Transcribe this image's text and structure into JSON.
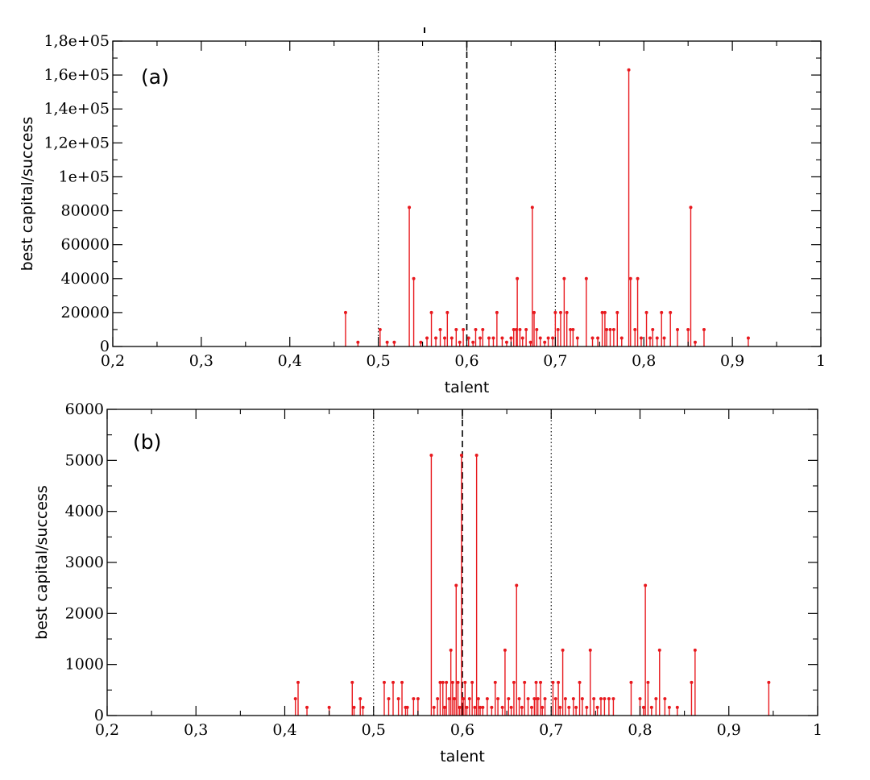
{
  "chart_data": [
    {
      "type": "scatter",
      "panel_label": "(a)",
      "xlabel": "talent",
      "ylabel": "best capital/success",
      "xlim": [
        0.2,
        1.0
      ],
      "ylim": [
        0,
        180000
      ],
      "x_ticks": [
        0.2,
        0.3,
        0.4,
        0.5,
        0.6,
        0.7,
        0.8,
        0.9,
        1.0
      ],
      "x_tick_labels": [
        "0,2",
        "0,3",
        "0,4",
        "0,5",
        "0,6",
        "0,7",
        "0,8",
        "0,9",
        "1"
      ],
      "y_ticks": [
        0,
        20000,
        40000,
        60000,
        80000,
        100000,
        120000,
        140000,
        160000,
        180000
      ],
      "y_tick_labels": [
        "0",
        "20000",
        "40000",
        "60000",
        "80000",
        "1e+05",
        "1,2e+05",
        "1,4e+05",
        "1,6e+05",
        "1,8e+05"
      ],
      "vlines": [
        {
          "x": 0.5,
          "style": "dotted"
        },
        {
          "x": 0.6,
          "style": "dashed"
        },
        {
          "x": 0.7,
          "style": "dotted"
        }
      ],
      "marker_color": "#e8191e",
      "grid": false,
      "points": [
        [
          0.463,
          20000
        ],
        [
          0.477,
          2500
        ],
        [
          0.502,
          10000
        ],
        [
          0.51,
          2500
        ],
        [
          0.518,
          2500
        ],
        [
          0.535,
          82000
        ],
        [
          0.54,
          40000
        ],
        [
          0.548,
          2500
        ],
        [
          0.555,
          5000
        ],
        [
          0.56,
          20000
        ],
        [
          0.565,
          5000
        ],
        [
          0.57,
          10000
        ],
        [
          0.575,
          5000
        ],
        [
          0.578,
          20000
        ],
        [
          0.583,
          5000
        ],
        [
          0.588,
          10000
        ],
        [
          0.592,
          2500
        ],
        [
          0.596,
          10000
        ],
        [
          0.602,
          5000
        ],
        [
          0.607,
          2500
        ],
        [
          0.61,
          10000
        ],
        [
          0.615,
          5000
        ],
        [
          0.618,
          10000
        ],
        [
          0.625,
          5000
        ],
        [
          0.63,
          5000
        ],
        [
          0.634,
          20000
        ],
        [
          0.64,
          5000
        ],
        [
          0.645,
          2500
        ],
        [
          0.65,
          5000
        ],
        [
          0.653,
          10000
        ],
        [
          0.656,
          10000
        ],
        [
          0.657,
          40000
        ],
        [
          0.66,
          10000
        ],
        [
          0.663,
          5000
        ],
        [
          0.667,
          10000
        ],
        [
          0.672,
          2500
        ],
        [
          0.674,
          82000
        ],
        [
          0.676,
          20000
        ],
        [
          0.679,
          10000
        ],
        [
          0.683,
          5000
        ],
        [
          0.688,
          2500
        ],
        [
          0.692,
          5000
        ],
        [
          0.697,
          5000
        ],
        [
          0.7,
          20000
        ],
        [
          0.703,
          10000
        ],
        [
          0.706,
          20000
        ],
        [
          0.71,
          40000
        ],
        [
          0.713,
          20000
        ],
        [
          0.717,
          10000
        ],
        [
          0.72,
          10000
        ],
        [
          0.725,
          5000
        ],
        [
          0.735,
          40000
        ],
        [
          0.742,
          5000
        ],
        [
          0.748,
          5000
        ],
        [
          0.753,
          20000
        ],
        [
          0.756,
          20000
        ],
        [
          0.758,
          10000
        ],
        [
          0.762,
          10000
        ],
        [
          0.766,
          10000
        ],
        [
          0.77,
          20000
        ],
        [
          0.775,
          5000
        ],
        [
          0.783,
          163000
        ],
        [
          0.785,
          40000
        ],
        [
          0.79,
          10000
        ],
        [
          0.793,
          40000
        ],
        [
          0.797,
          5000
        ],
        [
          0.803,
          20000
        ],
        [
          0.807,
          5000
        ],
        [
          0.81,
          10000
        ],
        [
          0.815,
          5000
        ],
        [
          0.82,
          20000
        ],
        [
          0.823,
          5000
        ],
        [
          0.83,
          20000
        ],
        [
          0.838,
          10000
        ],
        [
          0.85,
          10000
        ],
        [
          0.853,
          82000
        ],
        [
          0.858,
          2500
        ],
        [
          0.868,
          10000
        ],
        [
          0.918,
          5000
        ]
      ]
    },
    {
      "type": "scatter",
      "panel_label": "(b)",
      "xlabel": "talent",
      "ylabel": "best capital/success",
      "xlim": [
        0.2,
        1.0
      ],
      "ylim": [
        0,
        6000
      ],
      "x_ticks": [
        0.2,
        0.3,
        0.4,
        0.5,
        0.6,
        0.7,
        0.8,
        0.9,
        1.0
      ],
      "x_tick_labels": [
        "0,2",
        "0,3",
        "0,4",
        "0,5",
        "0,6",
        "0,7",
        "0,8",
        "0,9",
        "1"
      ],
      "y_ticks": [
        0,
        1000,
        2000,
        3000,
        4000,
        5000,
        6000
      ],
      "y_tick_labels": [
        "0",
        "1000",
        "2000",
        "3000",
        "4000",
        "5000",
        "6000"
      ],
      "vlines": [
        {
          "x": 0.5,
          "style": "dotted"
        },
        {
          "x": 0.6,
          "style": "dashed"
        },
        {
          "x": 0.7,
          "style": "dotted"
        }
      ],
      "marker_color": "#e8191e",
      "grid": false,
      "points": [
        [
          0.412,
          330
        ],
        [
          0.415,
          650
        ],
        [
          0.425,
          160
        ],
        [
          0.45,
          160
        ],
        [
          0.476,
          650
        ],
        [
          0.478,
          160
        ],
        [
          0.485,
          330
        ],
        [
          0.488,
          160
        ],
        [
          0.512,
          650
        ],
        [
          0.517,
          330
        ],
        [
          0.522,
          650
        ],
        [
          0.528,
          330
        ],
        [
          0.532,
          650
        ],
        [
          0.536,
          160
        ],
        [
          0.538,
          160
        ],
        [
          0.545,
          330
        ],
        [
          0.55,
          330
        ],
        [
          0.565,
          5100
        ],
        [
          0.568,
          160
        ],
        [
          0.572,
          330
        ],
        [
          0.575,
          650
        ],
        [
          0.578,
          650
        ],
        [
          0.58,
          160
        ],
        [
          0.582,
          650
        ],
        [
          0.585,
          330
        ],
        [
          0.587,
          1280
        ],
        [
          0.589,
          650
        ],
        [
          0.591,
          330
        ],
        [
          0.593,
          2550
        ],
        [
          0.595,
          650
        ],
        [
          0.597,
          160
        ],
        [
          0.599,
          5100
        ],
        [
          0.601,
          330
        ],
        [
          0.603,
          650
        ],
        [
          0.605,
          160
        ],
        [
          0.608,
          330
        ],
        [
          0.611,
          650
        ],
        [
          0.614,
          160
        ],
        [
          0.616,
          5100
        ],
        [
          0.618,
          330
        ],
        [
          0.62,
          160
        ],
        [
          0.623,
          160
        ],
        [
          0.628,
          330
        ],
        [
          0.633,
          160
        ],
        [
          0.637,
          650
        ],
        [
          0.64,
          330
        ],
        [
          0.645,
          160
        ],
        [
          0.648,
          1280
        ],
        [
          0.652,
          330
        ],
        [
          0.655,
          160
        ],
        [
          0.658,
          650
        ],
        [
          0.661,
          2550
        ],
        [
          0.664,
          330
        ],
        [
          0.667,
          160
        ],
        [
          0.67,
          650
        ],
        [
          0.674,
          330
        ],
        [
          0.678,
          160
        ],
        [
          0.681,
          330
        ],
        [
          0.683,
          650
        ],
        [
          0.685,
          330
        ],
        [
          0.688,
          650
        ],
        [
          0.69,
          160
        ],
        [
          0.693,
          330
        ],
        [
          0.702,
          650
        ],
        [
          0.705,
          330
        ],
        [
          0.708,
          650
        ],
        [
          0.71,
          160
        ],
        [
          0.713,
          1280
        ],
        [
          0.716,
          330
        ],
        [
          0.72,
          160
        ],
        [
          0.725,
          330
        ],
        [
          0.728,
          160
        ],
        [
          0.732,
          650
        ],
        [
          0.735,
          330
        ],
        [
          0.74,
          160
        ],
        [
          0.744,
          1280
        ],
        [
          0.748,
          330
        ],
        [
          0.752,
          160
        ],
        [
          0.756,
          330
        ],
        [
          0.76,
          330
        ],
        [
          0.765,
          330
        ],
        [
          0.77,
          330
        ],
        [
          0.79,
          650
        ],
        [
          0.8,
          330
        ],
        [
          0.804,
          160
        ],
        [
          0.806,
          2550
        ],
        [
          0.809,
          650
        ],
        [
          0.813,
          160
        ],
        [
          0.818,
          330
        ],
        [
          0.822,
          1280
        ],
        [
          0.828,
          330
        ],
        [
          0.833,
          160
        ],
        [
          0.842,
          160
        ],
        [
          0.858,
          650
        ],
        [
          0.862,
          1280
        ],
        [
          0.945,
          650
        ]
      ]
    }
  ]
}
